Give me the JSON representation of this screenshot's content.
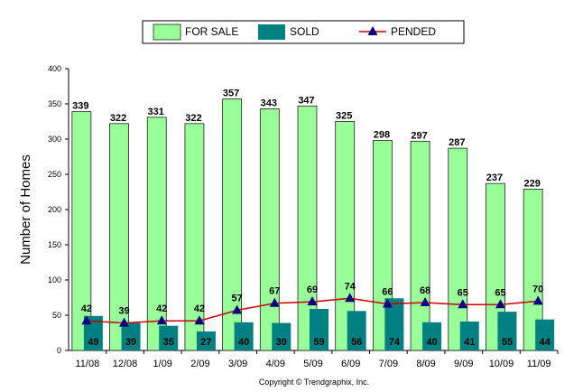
{
  "chart_data": {
    "type": "bar",
    "categories": [
      "11/08",
      "12/08",
      "1/09",
      "2/09",
      "3/09",
      "4/09",
      "5/09",
      "6/09",
      "7/09",
      "8/09",
      "9/09",
      "10/09",
      "11/09"
    ],
    "series": [
      {
        "name": "FOR SALE",
        "type": "bar",
        "color": "#99ff99",
        "values": [
          339,
          322,
          331,
          322,
          357,
          343,
          347,
          325,
          298,
          297,
          287,
          237,
          229
        ]
      },
      {
        "name": "SOLD",
        "type": "bar",
        "color": "#008080",
        "values": [
          49,
          39,
          35,
          27,
          40,
          39,
          59,
          56,
          74,
          40,
          41,
          55,
          44
        ]
      },
      {
        "name": "PENDED",
        "type": "line",
        "color": "#cc0000",
        "marker_color": "#000080",
        "values": [
          42,
          39,
          42,
          42,
          57,
          67,
          69,
          74,
          66,
          68,
          65,
          65,
          70
        ]
      }
    ],
    "title": "",
    "xlabel": "",
    "ylabel": "Number of Homes",
    "ylim": [
      0,
      400
    ],
    "yticks": [
      0,
      50,
      100,
      150,
      200,
      250,
      300,
      350,
      400
    ],
    "grid": false,
    "legend": "top-center",
    "footer": "Copyright © Trendgraphix, Inc."
  }
}
